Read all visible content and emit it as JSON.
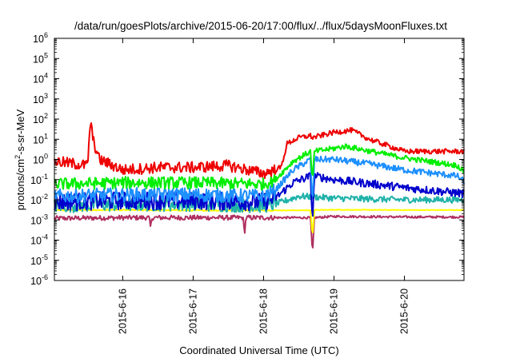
{
  "chart_data": {
    "type": "line",
    "title": "/data/run/goesPlots/archive/2015-06-20/17:00/flux/../flux/5daysMoonFluxes.txt",
    "xlabel": "Coordinated Universal Time (UTC)",
    "ylabel": "protons/cm2-s-sr-MeV",
    "ylabel_parts": {
      "pre": "protons/cm",
      "sup": "2",
      "post": "-s-sr-MeV"
    },
    "yscale": "log",
    "ylim": [
      1e-06,
      1000000.0
    ],
    "xlim": [
      "2015-06-15 00:43",
      "2015-06-20 20:18"
    ],
    "grid": false,
    "y_ticks": [
      {
        "value": 1e-06,
        "base": "10",
        "exp": "-6"
      },
      {
        "value": 1e-05,
        "base": "10",
        "exp": "-5"
      },
      {
        "value": 0.0001,
        "base": "10",
        "exp": "-4"
      },
      {
        "value": 0.001,
        "base": "10",
        "exp": "-3"
      },
      {
        "value": 0.01,
        "base": "10",
        "exp": "-2"
      },
      {
        "value": 0.1,
        "base": "10",
        "exp": "-1"
      },
      {
        "value": 1,
        "base": "10",
        "exp": "0"
      },
      {
        "value": 10.0,
        "base": "10",
        "exp": "1"
      },
      {
        "value": 100.0,
        "base": "10",
        "exp": "2"
      },
      {
        "value": 1000.0,
        "base": "10",
        "exp": "3"
      },
      {
        "value": 10000.0,
        "base": "10",
        "exp": "4"
      },
      {
        "value": 100000.0,
        "base": "10",
        "exp": "5"
      },
      {
        "value": 1000000.0,
        "base": "10",
        "exp": "6"
      }
    ],
    "x_ticks": [
      {
        "value": "2015-06-16 00:00",
        "label": "2015-6-16"
      },
      {
        "value": "2015-06-17 00:00",
        "label": "2015-6-17"
      },
      {
        "value": "2015-06-18 00:00",
        "label": "2015-6-18"
      },
      {
        "value": "2015-06-19 00:00",
        "label": "2015-6-19"
      },
      {
        "value": "2015-06-20 00:00",
        "label": "2015-6-20"
      }
    ],
    "series": [
      {
        "color": "#b03060",
        "x": [
          "2015-06-15 00:43",
          "2015-06-16 00:00",
          "2015-06-16 09:00",
          "2015-06-16 09:30",
          "2015-06-16 10:00",
          "2015-06-17 00:00",
          "2015-06-17 17:00",
          "2015-06-17 17:30",
          "2015-06-17 18:00",
          "2015-06-18 00:00",
          "2015-06-18 16:00",
          "2015-06-18 16:40",
          "2015-06-18 17:20",
          "2015-06-19 00:00",
          "2015-06-20 00:00",
          "2015-06-20 20:18"
        ],
        "y": [
          0.0012,
          0.0013,
          0.0013,
          0.0004,
          0.0013,
          0.0013,
          0.0013,
          0.0002,
          0.0013,
          0.0013,
          0.0013,
          2e-05,
          0.0013,
          0.0015,
          0.0014,
          0.0014
        ],
        "noise": 0.12
      },
      {
        "color": "#ffff00",
        "x": [
          "2015-06-15 00:43",
          "2015-06-16 00:00",
          "2015-06-17 00:00",
          "2015-06-18 00:00",
          "2015-06-18 16:00",
          "2015-06-18 16:40",
          "2015-06-18 17:20",
          "2015-06-19 00:00",
          "2015-06-20 00:00",
          "2015-06-20 20:18"
        ],
        "y": [
          0.0031,
          0.0031,
          0.003,
          0.003,
          0.003,
          0.00015,
          0.0031,
          0.0032,
          0.0031,
          0.0031
        ],
        "noise": 0.03
      },
      {
        "color": "#20b2aa",
        "x": [
          "2015-06-15 00:43",
          "2015-06-16 00:00",
          "2015-06-17 00:00",
          "2015-06-18 00:00",
          "2015-06-18 04:00",
          "2015-06-18 12:00",
          "2015-06-18 16:40",
          "2015-06-19 00:00",
          "2015-06-20 00:00",
          "2015-06-20 20:18"
        ],
        "y": [
          0.005,
          0.006,
          0.006,
          0.005,
          0.006,
          0.015,
          0.014,
          0.012,
          0.01,
          0.01
        ],
        "noise": 0.35
      },
      {
        "color": "#0000cd",
        "x": [
          "2015-06-15 00:43",
          "2015-06-16 00:00",
          "2015-06-17 00:00",
          "2015-06-18 00:00",
          "2015-06-18 04:00",
          "2015-06-18 10:00",
          "2015-06-18 16:00",
          "2015-06-18 16:40",
          "2015-06-18 17:20",
          "2015-06-19 00:00",
          "2015-06-20 00:00",
          "2015-06-20 20:18"
        ],
        "y": [
          0.008,
          0.009,
          0.009,
          0.008,
          0.012,
          0.07,
          0.15,
          0.0008,
          0.15,
          0.1,
          0.04,
          0.02
        ],
        "noise": 0.45
      },
      {
        "color": "#1e90ff",
        "x": [
          "2015-06-15 00:43",
          "2015-06-16 00:00",
          "2015-06-17 00:00",
          "2015-06-18 00:00",
          "2015-06-18 04:00",
          "2015-06-18 10:00",
          "2015-06-18 16:00",
          "2015-06-18 16:40",
          "2015-06-18 17:20",
          "2015-06-19 00:00",
          "2015-06-19 12:00",
          "2015-06-20 00:00",
          "2015-06-20 18:00",
          "2015-06-20 20:18"
        ],
        "y": [
          0.015,
          0.018,
          0.018,
          0.015,
          0.03,
          0.3,
          1.0,
          0.005,
          1.0,
          1.0,
          0.6,
          0.3,
          0.15,
          0.08
        ],
        "noise": 0.35
      },
      {
        "color": "#00ee00",
        "x": [
          "2015-06-15 00:43",
          "2015-06-16 00:00",
          "2015-06-17 00:00",
          "2015-06-18 00:00",
          "2015-06-18 04:00",
          "2015-06-18 10:00",
          "2015-06-18 16:00",
          "2015-06-18 16:40",
          "2015-06-18 17:20",
          "2015-06-19 00:00",
          "2015-06-19 04:00",
          "2015-06-19 16:00",
          "2015-06-20 00:00",
          "2015-06-20 18:00",
          "2015-06-20 20:18"
        ],
        "y": [
          0.06,
          0.07,
          0.07,
          0.06,
          0.1,
          0.8,
          2.5,
          0.08,
          2.5,
          3.5,
          4.5,
          2.0,
          1.2,
          0.5,
          0.25
        ],
        "noise": 0.3
      },
      {
        "color": "#ee0000",
        "x": [
          "2015-06-15 00:43",
          "2015-06-15 12:00",
          "2015-06-15 13:00",
          "2015-06-15 14:00",
          "2015-06-15 16:00",
          "2015-06-16 00:00",
          "2015-06-16 12:00",
          "2015-06-17 00:00",
          "2015-06-17 12:00",
          "2015-06-18 00:00",
          "2015-06-18 06:00",
          "2015-06-18 08:00",
          "2015-06-18 12:00",
          "2015-06-18 16:00",
          "2015-06-18 16:40",
          "2015-06-19 00:00",
          "2015-06-19 06:00",
          "2015-06-19 12:00",
          "2015-06-20 00:00",
          "2015-06-20 12:00",
          "2015-06-20 20:18"
        ],
        "y": [
          0.8,
          0.5,
          70,
          8,
          1.0,
          0.3,
          0.4,
          0.4,
          0.5,
          0.2,
          0.4,
          6,
          12,
          15,
          12,
          22,
          28,
          10,
          2.5,
          2.5,
          2.5
        ],
        "noise": 0.28
      }
    ]
  }
}
